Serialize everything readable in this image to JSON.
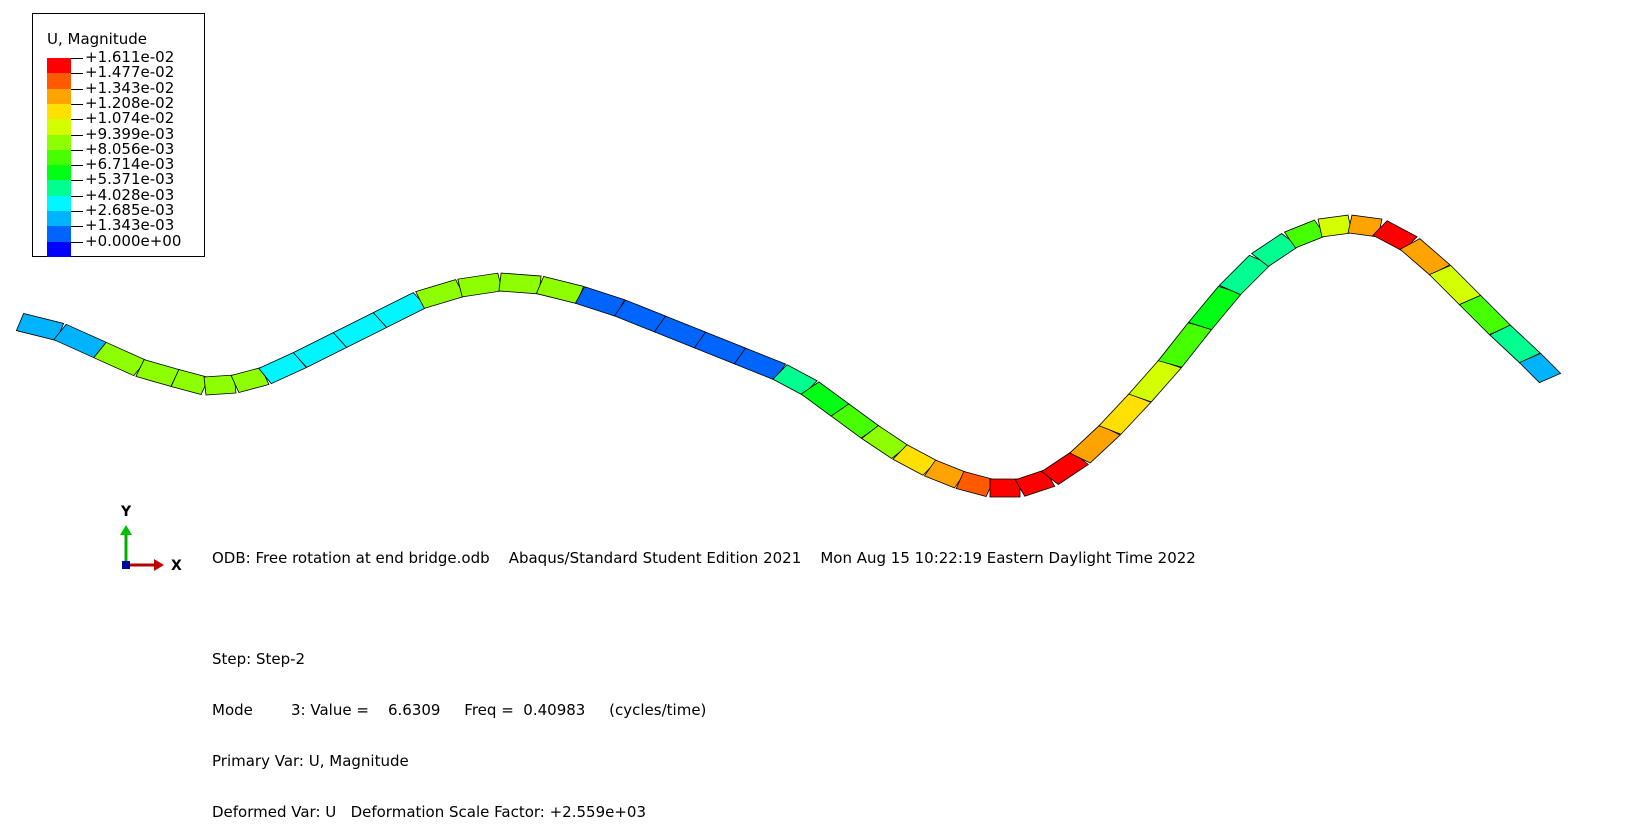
{
  "legend": {
    "title": "U, Magnitude",
    "values": [
      "+1.611e-02",
      "+1.477e-02",
      "+1.343e-02",
      "+1.208e-02",
      "+1.074e-02",
      "+9.399e-03",
      "+8.056e-03",
      "+6.714e-03",
      "+5.371e-03",
      "+4.028e-03",
      "+2.685e-03",
      "+1.343e-03",
      "+0.000e+00"
    ],
    "colors": [
      "#ff0000",
      "#ff5a00",
      "#ffa300",
      "#ffe000",
      "#d4ff00",
      "#8eff00",
      "#46ff00",
      "#00ff14",
      "#00ff90",
      "#00f6ff",
      "#00b3ff",
      "#0064ff",
      "#0000ff"
    ]
  },
  "info": {
    "line1": "ODB: Free rotation at end bridge.odb    Abaqus/Standard Student Edition 2021    Mon Aug 15 10:22:19 Eastern Daylight Time 2022",
    "line2": "Step: Step-2",
    "line3": "Mode        3: Value =    6.6309     Freq =  0.40983     (cycles/time)",
    "line4": "Primary Var: U, Magnitude",
    "line5": "Deformed Var: U   Deformation Scale Factor: +2.559e+03"
  },
  "triad": {
    "y_label": "Y",
    "x_label": "X"
  }
}
